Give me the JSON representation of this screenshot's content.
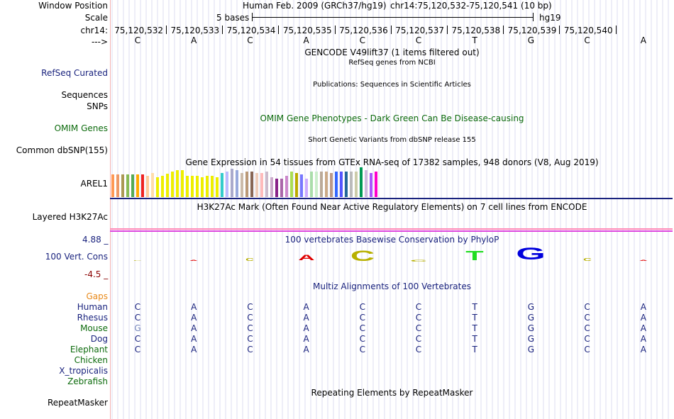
{
  "header": {
    "window_position_label": "Window Position",
    "scale_label": "Scale",
    "chrom_label": "chr14:",
    "strand_label": "--->",
    "assembly": "Human Feb. 2009 (GRCh37/hg19)",
    "position": "chr14:75,120,532-75,120,541 (10 bp)",
    "scale_text": "5 bases",
    "scale_db": "hg19",
    "coords": [
      "75,120,532",
      "75,120,533",
      "75,120,534",
      "75,120,535",
      "75,120,536",
      "75,120,537",
      "75,120,538",
      "75,120,539",
      "75,120,540"
    ],
    "bases": [
      "C",
      "A",
      "C",
      "A",
      "C",
      "C",
      "T",
      "G",
      "C",
      "A"
    ]
  },
  "tracks": {
    "gencode_title": "GENCODE V49lift37 (1 items filtered out)",
    "refseq_title": "RefSeq genes from NCBI",
    "refseq_label": "RefSeq Curated",
    "publications_title": "Publications: Sequences in Scientific Articles",
    "sequences_label": "Sequences",
    "snps_label": "SNPs",
    "omim_title": "OMIM Gene Phenotypes - Dark Green Can Be Disease-causing",
    "omim_label": "OMIM Genes",
    "dbsnp_title": "Short Genetic Variants from dbSNP release 155",
    "dbsnp_label": "Common dbSNP(155)",
    "gtex_title": "Gene Expression in 54 tissues from GTEx RNA-seq of 17382 samples, 948 donors (V8, Aug 2019)",
    "gtex_gene": "AREL1",
    "h3k27_title": "H3K27Ac Mark (Often Found Near Active Regulatory Elements) on 7 cell lines from ENCODE",
    "h3k27_label": "Layered H3K27Ac",
    "phylop_title": "100 vertebrates Basewise Conservation by PhyloP",
    "phylop_label": "100 Vert. Cons",
    "phylop_max": "4.88 _",
    "phylop_min": "-4.5 _",
    "multiz_title": "Multiz Alignments of 100 Vertebrates",
    "gaps_label": "Gaps",
    "repeat_title": "Repeating Elements by RepeatMasker",
    "repeat_label": "RepeatMasker"
  },
  "gtex_colors": [
    "#ff9955",
    "#ee9966",
    "#aa9955",
    "#88bb55",
    "#55aa55",
    "#ffaa00",
    "#ee2222",
    "#ffcc99",
    "#ffddaa",
    "#eeee00",
    "#eeee00",
    "#eeee00",
    "#eeee00",
    "#eeee00",
    "#eeee00",
    "#eeee00",
    "#eeee00",
    "#eeee00",
    "#eeee00",
    "#eeee00",
    "#eeee00",
    "#eeee00",
    "#33cccc",
    "#bbbbff",
    "#aaaacc",
    "#99aadd",
    "#ccbbaa",
    "#bb9977",
    "#886655",
    "#eeccbb",
    "#ffbbbb",
    "#ccbbcc",
    "#ccaacc",
    "#882288",
    "#aa66aa",
    "#cc88cc",
    "#aadd55",
    "#bbaa00",
    "#7777ff",
    "#ccaaff",
    "#aaddaa",
    "#cceecc",
    "#bbaa99",
    "#ccaa88",
    "#bb9988",
    "#3366ff",
    "#5555ff",
    "#226699",
    "#bbbbbb",
    "#ccccaa",
    "#009955",
    "#ccbbdd",
    "#aa55ff",
    "#ff00cc"
  ],
  "gtex_values": [
    32,
    32,
    32,
    32,
    32,
    32,
    32,
    30,
    34,
    28,
    30,
    33,
    36,
    38,
    38,
    30,
    30,
    30,
    28,
    30,
    30,
    28,
    34,
    36,
    40,
    38,
    34,
    36,
    36,
    34,
    34,
    36,
    28,
    26,
    26,
    30,
    36,
    34,
    32,
    26,
    36,
    36,
    36,
    36,
    34,
    36,
    36,
    36,
    36,
    36,
    42,
    38,
    34,
    36
  ],
  "conservation": {
    "letters": [
      "C",
      "A",
      "C",
      "A",
      "C",
      "C",
      "T",
      "G",
      "C",
      "A"
    ],
    "heights": [
      1,
      1,
      4,
      8,
      16,
      3,
      14,
      18,
      4,
      1
    ],
    "colors": [
      "#b8b000",
      "#e00000",
      "#b8b000",
      "#e00000",
      "#b8b000",
      "#b8b000",
      "#22dd22",
      "#0000dd",
      "#b8b000",
      "#e00000"
    ]
  },
  "species": [
    {
      "name": "Human",
      "color": "navy",
      "bases": [
        "C",
        "A",
        "C",
        "A",
        "C",
        "C",
        "T",
        "G",
        "C",
        "A"
      ]
    },
    {
      "name": "Rhesus",
      "color": "navy",
      "bases": [
        "C",
        "A",
        "C",
        "A",
        "C",
        "C",
        "T",
        "G",
        "C",
        "A"
      ]
    },
    {
      "name": "Mouse",
      "color": "green",
      "bases": [
        "G",
        "A",
        "C",
        "A",
        "C",
        "C",
        "T",
        "G",
        "C",
        "A"
      ]
    },
    {
      "name": "Dog",
      "color": "navy",
      "bases": [
        "C",
        "A",
        "C",
        "A",
        "C",
        "C",
        "T",
        "G",
        "C",
        "A"
      ]
    },
    {
      "name": "Elephant",
      "color": "green",
      "bases": [
        "C",
        "A",
        "C",
        "A",
        "C",
        "C",
        "T",
        "G",
        "C",
        "A"
      ]
    },
    {
      "name": "Chicken",
      "color": "green",
      "bases": []
    },
    {
      "name": "X_tropicalis",
      "color": "navy",
      "bases": []
    },
    {
      "name": "Zebrafish",
      "color": "green",
      "bases": []
    }
  ]
}
